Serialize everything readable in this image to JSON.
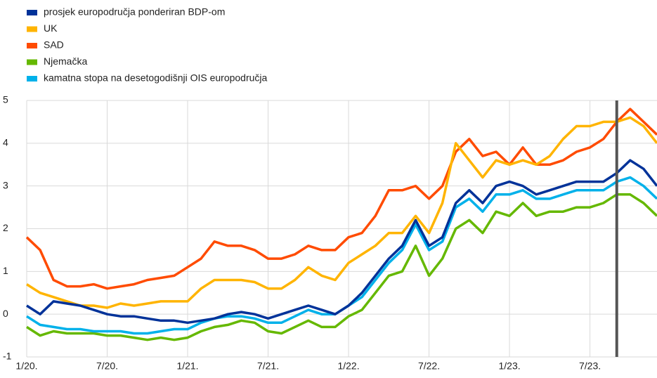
{
  "chart_data": {
    "type": "line",
    "x": [
      "2020-01",
      "2020-02",
      "2020-03",
      "2020-04",
      "2020-05",
      "2020-06",
      "2020-07",
      "2020-08",
      "2020-09",
      "2020-10",
      "2020-11",
      "2020-12",
      "2021-01",
      "2021-02",
      "2021-03",
      "2021-04",
      "2021-05",
      "2021-06",
      "2021-07",
      "2021-08",
      "2021-09",
      "2021-10",
      "2021-11",
      "2021-12",
      "2022-01",
      "2022-02",
      "2022-03",
      "2022-04",
      "2022-05",
      "2022-06",
      "2022-07",
      "2022-08",
      "2022-09",
      "2022-10",
      "2022-11",
      "2022-12",
      "2023-01",
      "2023-02",
      "2023-03",
      "2023-04",
      "2023-05",
      "2023-06",
      "2023-07",
      "2023-08",
      "2023-09",
      "2023-10",
      "2023-11",
      "2023-12"
    ],
    "series": [
      {
        "name": "prosjek europodručja ponderiran BDP-om",
        "color": "#003299",
        "values": [
          0.2,
          0.0,
          0.3,
          0.25,
          0.2,
          0.1,
          0.0,
          -0.05,
          -0.05,
          -0.1,
          -0.15,
          -0.15,
          -0.2,
          -0.15,
          -0.1,
          0.0,
          0.05,
          0.0,
          -0.1,
          0.0,
          0.1,
          0.2,
          0.1,
          0.0,
          0.2,
          0.5,
          0.9,
          1.3,
          1.6,
          2.2,
          1.6,
          1.8,
          2.6,
          2.9,
          2.6,
          3.0,
          3.1,
          3.0,
          2.8,
          2.9,
          3.0,
          3.1,
          3.1,
          3.1,
          3.3,
          3.6,
          3.4,
          3.0
        ]
      },
      {
        "name": "UK",
        "color": "#ffb400",
        "values": [
          0.7,
          0.5,
          0.4,
          0.3,
          0.2,
          0.2,
          0.15,
          0.25,
          0.2,
          0.25,
          0.3,
          0.3,
          0.3,
          0.6,
          0.8,
          0.8,
          0.8,
          0.75,
          0.6,
          0.6,
          0.8,
          1.1,
          0.9,
          0.8,
          1.2,
          1.4,
          1.6,
          1.9,
          1.9,
          2.3,
          1.9,
          2.6,
          4.0,
          3.6,
          3.2,
          3.6,
          3.5,
          3.6,
          3.5,
          3.7,
          4.1,
          4.4,
          4.4,
          4.5,
          4.5,
          4.6,
          4.4,
          4.0
        ]
      },
      {
        "name": "SAD",
        "color": "#ff4b00",
        "values": [
          1.8,
          1.5,
          0.8,
          0.65,
          0.65,
          0.7,
          0.6,
          0.65,
          0.7,
          0.8,
          0.85,
          0.9,
          1.1,
          1.3,
          1.7,
          1.6,
          1.6,
          1.5,
          1.3,
          1.3,
          1.4,
          1.6,
          1.5,
          1.5,
          1.8,
          1.9,
          2.3,
          2.9,
          2.9,
          3.0,
          2.7,
          3.0,
          3.8,
          4.1,
          3.7,
          3.8,
          3.5,
          3.9,
          3.5,
          3.5,
          3.6,
          3.8,
          3.9,
          4.1,
          4.5,
          4.8,
          4.5,
          4.2
        ]
      },
      {
        "name": "Njemačka",
        "color": "#65b800",
        "values": [
          -0.3,
          -0.5,
          -0.4,
          -0.45,
          -0.45,
          -0.45,
          -0.5,
          -0.5,
          -0.55,
          -0.6,
          -0.55,
          -0.6,
          -0.55,
          -0.4,
          -0.3,
          -0.25,
          -0.15,
          -0.2,
          -0.4,
          -0.45,
          -0.3,
          -0.15,
          -0.3,
          -0.3,
          -0.05,
          0.1,
          0.5,
          0.9,
          1.0,
          1.6,
          0.9,
          1.3,
          2.0,
          2.2,
          1.9,
          2.4,
          2.3,
          2.6,
          2.3,
          2.4,
          2.4,
          2.5,
          2.5,
          2.6,
          2.8,
          2.8,
          2.6,
          2.3
        ]
      },
      {
        "name": "kamatna stopa na desetogodišnji OIS europodručja",
        "color": "#00b1ea",
        "values": [
          -0.05,
          -0.25,
          -0.3,
          -0.35,
          -0.35,
          -0.4,
          -0.4,
          -0.4,
          -0.45,
          -0.45,
          -0.4,
          -0.35,
          -0.35,
          -0.2,
          -0.1,
          -0.05,
          -0.05,
          -0.1,
          -0.2,
          -0.2,
          -0.05,
          0.1,
          0.0,
          0.0,
          0.2,
          0.4,
          0.8,
          1.2,
          1.5,
          2.1,
          1.5,
          1.7,
          2.5,
          2.7,
          2.4,
          2.8,
          2.8,
          2.9,
          2.7,
          2.7,
          2.8,
          2.9,
          2.9,
          2.9,
          3.1,
          3.2,
          3.0,
          2.7
        ]
      }
    ],
    "ylim": [
      -1,
      5
    ],
    "yticks": [
      -1,
      0,
      1,
      2,
      3,
      4,
      5
    ],
    "xticks": [
      {
        "value": "2020-01",
        "label": "1/20."
      },
      {
        "value": "2020-07",
        "label": "7/20."
      },
      {
        "value": "2021-01",
        "label": "1/21."
      },
      {
        "value": "2021-07",
        "label": "7/21."
      },
      {
        "value": "2022-01",
        "label": "1/22."
      },
      {
        "value": "2022-07",
        "label": "7/22."
      },
      {
        "value": "2023-01",
        "label": "1/23."
      },
      {
        "value": "2023-07",
        "label": "7/23."
      }
    ],
    "vline": "2023-09",
    "vline_color": "#555555",
    "grid": true,
    "legend": "top-left"
  }
}
